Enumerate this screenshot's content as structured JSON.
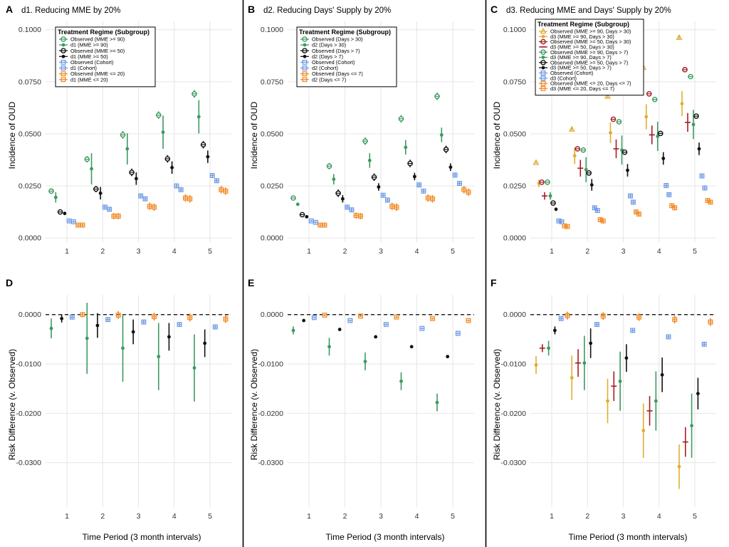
{
  "colors": {
    "green": "#3c9a5f",
    "black": "#111111",
    "blue": "#6f9be6",
    "orange": "#f28c28",
    "gold": "#e0ad32",
    "darkred": "#a51d24",
    "grid": "#e6e6e6"
  },
  "legend_title": "Treatment Regime (Subgroup)",
  "chart_data": [
    {
      "type": "scatter",
      "panel": "A",
      "title": "d1. Reducing MME by 20%",
      "ylabel": "Incidence of OUD",
      "xlabel": "",
      "ylim": [
        -0.002,
        0.104
      ],
      "yticks": [
        "0.0000",
        "0.0250",
        "0.0500",
        "0.0750",
        "0.1000"
      ],
      "categories": [
        "1",
        "2",
        "3",
        "4",
        "5"
      ],
      "legend": "top-left",
      "series": [
        {
          "name": "Observed (MME >= 90)",
          "color": "green",
          "marker": "o",
          "values": [
            0.0225,
            0.0378,
            0.0495,
            0.059,
            0.0692
          ],
          "err": [
            0.0012,
            0.0015,
            0.0018,
            0.0018,
            0.0018
          ]
        },
        {
          "name": "d1 (MME >= 90)",
          "color": "green",
          "marker": "dot",
          "values": [
            0.0195,
            0.0332,
            0.0428,
            0.0508,
            0.0582
          ],
          "err": [
            0.0025,
            0.0075,
            0.0075,
            0.008,
            0.008
          ]
        },
        {
          "name": "Observed (MME >= 50)",
          "color": "black",
          "marker": "o",
          "values": [
            0.0125,
            0.0235,
            0.0315,
            0.038,
            0.0448
          ],
          "err": [
            0.0008,
            0.0015,
            0.0018,
            0.0018,
            0.0018
          ]
        },
        {
          "name": "d1 (MME >= 50)",
          "color": "black",
          "marker": "dot",
          "values": [
            0.0118,
            0.0215,
            0.0285,
            0.0338,
            0.039
          ],
          "err": [
            0.0008,
            0.003,
            0.003,
            0.003,
            0.003
          ]
        },
        {
          "name": "Observed (Cohort)",
          "color": "blue",
          "marker": "sq",
          "values": [
            0.0082,
            0.0148,
            0.0202,
            0.025,
            0.03
          ],
          "err": [
            0.0006,
            0.0008,
            0.001,
            0.001,
            0.001
          ]
        },
        {
          "name": "d1 (Cohort)",
          "color": "blue",
          "marker": "sq",
          "values": [
            0.0078,
            0.0138,
            0.0188,
            0.0232,
            0.0275
          ],
          "err": [
            0.0005,
            0.0008,
            0.001,
            0.001,
            0.001
          ]
        },
        {
          "name": "Observed (MME <= 20)",
          "color": "orange",
          "marker": "sq",
          "values": [
            0.0062,
            0.0105,
            0.0152,
            0.0192,
            0.0232
          ],
          "err": [
            0.0008,
            0.0015,
            0.0018,
            0.0018,
            0.0018
          ]
        },
        {
          "name": "d1 (MME <= 20)",
          "color": "orange",
          "marker": "sq",
          "values": [
            0.0062,
            0.0105,
            0.0148,
            0.0188,
            0.0225
          ],
          "err": [
            0.0008,
            0.0015,
            0.0018,
            0.0018,
            0.0018
          ]
        }
      ]
    },
    {
      "type": "scatter",
      "panel": "B",
      "title": "d2. Reducing Days' Supply by 20%",
      "ylabel": "Incidence of OUD",
      "xlabel": "",
      "ylim": [
        -0.002,
        0.104
      ],
      "yticks": [
        "0.0000",
        "0.0250",
        "0.0500",
        "0.0750",
        "0.1000"
      ],
      "categories": [
        "1",
        "2",
        "3",
        "4",
        "5"
      ],
      "legend": "top-left",
      "series": [
        {
          "name": "Observed (Days > 30)",
          "color": "green",
          "marker": "o",
          "values": [
            0.0192,
            0.0345,
            0.0465,
            0.0572,
            0.068
          ],
          "err": [
            0.0012,
            0.0015,
            0.0018,
            0.0018,
            0.0018
          ]
        },
        {
          "name": "d2 (Days > 30)",
          "color": "green",
          "marker": "dot",
          "values": [
            0.0162,
            0.0282,
            0.0372,
            0.0435,
            0.0495
          ],
          "err": [
            0.0008,
            0.0025,
            0.0035,
            0.0035,
            0.0035
          ]
        },
        {
          "name": "Observed (Days > 7)",
          "color": "black",
          "marker": "o",
          "values": [
            0.0112,
            0.0215,
            0.0292,
            0.0358,
            0.0425
          ],
          "err": [
            0.0008,
            0.0018,
            0.0018,
            0.0018,
            0.0018
          ]
        },
        {
          "name": "d2 (Days > 7)",
          "color": "black",
          "marker": "dot",
          "values": [
            0.0102,
            0.0188,
            0.0245,
            0.0295,
            0.034
          ],
          "err": [
            0.0008,
            0.0018,
            0.0018,
            0.0018,
            0.0018
          ]
        },
        {
          "name": "Observed (Cohort)",
          "color": "blue",
          "marker": "sq",
          "values": [
            0.0082,
            0.0148,
            0.0205,
            0.0255,
            0.0302
          ],
          "err": [
            0.0005,
            0.0008,
            0.001,
            0.001,
            0.001
          ]
        },
        {
          "name": "d2 (Cohort)",
          "color": "blue",
          "marker": "sq",
          "values": [
            0.0075,
            0.0135,
            0.0182,
            0.0225,
            0.0262
          ],
          "err": [
            0.0005,
            0.0008,
            0.001,
            0.001,
            0.001
          ]
        },
        {
          "name": "Observed (Days <= 7)",
          "color": "orange",
          "marker": "sq",
          "values": [
            0.0062,
            0.0108,
            0.0152,
            0.0192,
            0.0232
          ],
          "err": [
            0.0008,
            0.0015,
            0.0018,
            0.0018,
            0.0018
          ]
        },
        {
          "name": "d2 (Days <= 7)",
          "color": "orange",
          "marker": "sq",
          "values": [
            0.0062,
            0.0105,
            0.0148,
            0.0188,
            0.022
          ],
          "err": [
            0.0008,
            0.0015,
            0.0018,
            0.0018,
            0.0018
          ]
        }
      ]
    },
    {
      "type": "scatter",
      "panel": "C",
      "title": "d3. Reducing MME and Days' Supply by 20%",
      "ylabel": "Incidence of OUD",
      "xlabel": "",
      "ylim": [
        -0.002,
        0.104
      ],
      "yticks": [
        "0.0000",
        "0.0250",
        "0.0500",
        "0.0750",
        "0.1000"
      ],
      "categories": [
        "1",
        "2",
        "3",
        "4",
        "5"
      ],
      "legend": "top-left",
      "series": [
        {
          "name": "Observed (MME >= 90, Days > 30)",
          "color": "gold",
          "marker": "tri",
          "values": [
            0.0362,
            0.0522,
            0.068,
            0.0818,
            0.0962
          ],
          "err": [
            0.0005,
            0.0008,
            0.001,
            0.001,
            0.001
          ]
        },
        {
          "name": "d3 (MME >= 90, Days > 30)",
          "color": "gold",
          "marker": "dot",
          "values": [
            0.0262,
            0.0395,
            0.0505,
            0.0582,
            0.0645
          ],
          "err": [
            0.0018,
            0.004,
            0.005,
            0.006,
            0.006
          ]
        },
        {
          "name": "Observed (MME >= 50, Days > 30)",
          "color": "darkred",
          "marker": "o",
          "values": [
            0.0268,
            0.0428,
            0.057,
            0.0692,
            0.0808
          ],
          "err": [
            0.0008,
            0.0012,
            0.0012,
            0.0012,
            0.0012
          ]
        },
        {
          "name": "d3 (MME >= 50, Days > 30)",
          "color": "darkred",
          "marker": "plus",
          "values": [
            0.0202,
            0.0335,
            0.0428,
            0.0495,
            0.0555
          ],
          "err": [
            0.0018,
            0.004,
            0.0045,
            0.0045,
            0.0045
          ]
        },
        {
          "name": "Observed (MME >= 90, Days > 7)",
          "color": "green",
          "marker": "o",
          "values": [
            0.0268,
            0.0422,
            0.0558,
            0.0665,
            0.0775
          ],
          "err": [
            0.0008,
            0.001,
            0.001,
            0.001,
            0.0012
          ]
        },
        {
          "name": "d3 (MME >= 90, Days > 7)",
          "color": "green",
          "marker": "dot",
          "values": [
            0.0202,
            0.0328,
            0.0422,
            0.0488,
            0.0545
          ],
          "err": [
            0.0018,
            0.006,
            0.007,
            0.007,
            0.007
          ]
        },
        {
          "name": "Observed (MME >= 50, Days > 7)",
          "color": "black",
          "marker": "o",
          "values": [
            0.0168,
            0.0312,
            0.0412,
            0.0502,
            0.0585
          ],
          "err": [
            0.0008,
            0.0012,
            0.0012,
            0.0012,
            0.0012
          ]
        },
        {
          "name": "d3 (MME >= 50, Days > 7)",
          "color": "black",
          "marker": "dot",
          "values": [
            0.0138,
            0.0255,
            0.0325,
            0.0382,
            0.0428
          ],
          "err": [
            0.0008,
            0.0028,
            0.003,
            0.003,
            0.003
          ]
        },
        {
          "name": "Observed (Cohort)",
          "color": "blue",
          "marker": "sq",
          "values": [
            0.0082,
            0.0145,
            0.0202,
            0.0252,
            0.0298
          ],
          "err": [
            0.0005,
            0.0008,
            0.001,
            0.001,
            0.001
          ]
        },
        {
          "name": "d3 (Cohort)",
          "color": "blue",
          "marker": "sq",
          "values": [
            0.0078,
            0.0132,
            0.0172,
            0.0208,
            0.024
          ],
          "err": [
            0.0005,
            0.0008,
            0.001,
            0.001,
            0.001
          ]
        },
        {
          "name": "Observed (MME <= 20, Days <= 7)",
          "color": "orange",
          "marker": "sq",
          "values": [
            0.0058,
            0.0088,
            0.0125,
            0.0155,
            0.018
          ],
          "err": [
            0.0006,
            0.0012,
            0.0012,
            0.0012,
            0.0012
          ]
        },
        {
          "name": "d3 (MME <= 20, Days <= 7)",
          "color": "orange",
          "marker": "sq",
          "values": [
            0.0055,
            0.0082,
            0.0115,
            0.0145,
            0.0172
          ],
          "err": [
            0.0006,
            0.0012,
            0.0012,
            0.0012,
            0.0012
          ]
        }
      ]
    },
    {
      "type": "scatter",
      "panel": "D",
      "title": "",
      "ylabel": "Risk Difference (v. Observed)",
      "xlabel": "Time Period (3 month intervals)",
      "ylim": [
        -0.039,
        0.004
      ],
      "yticks": [
        "-0.0300",
        "-0.0200",
        "-0.0100",
        "0.0000"
      ],
      "refline": 0,
      "categories": [
        "1",
        "2",
        "3",
        "4",
        "5"
      ],
      "series": [
        {
          "color": "green",
          "marker": "dot",
          "values": [
            -0.0028,
            -0.0048,
            -0.0068,
            -0.0085,
            -0.0108
          ],
          "err": [
            0.002,
            0.0072,
            0.0068,
            0.0068,
            0.0068
          ]
        },
        {
          "color": "black",
          "marker": "dot",
          "values": [
            -0.0008,
            -0.0022,
            -0.0035,
            -0.0045,
            -0.0058
          ],
          "err": [
            0.0008,
            0.0025,
            0.0025,
            0.0028,
            0.0028
          ]
        },
        {
          "color": "blue",
          "marker": "sq",
          "values": [
            -0.0005,
            -0.001,
            -0.0015,
            -0.002,
            -0.0025
          ],
          "err": [
            0.0003,
            0.0003,
            0.0003,
            0.0003,
            0.0003
          ]
        },
        {
          "color": "orange",
          "marker": "sq",
          "values": [
            0.0,
            -0.0001,
            -0.0004,
            -0.0006,
            -0.0009
          ],
          "err": [
            0.0005,
            0.0008,
            0.0008,
            0.0008,
            0.0008
          ]
        }
      ]
    },
    {
      "type": "scatter",
      "panel": "E",
      "title": "",
      "ylabel": "Risk Difference (v. Observed)",
      "xlabel": "Time Period (3 month intervals)",
      "ylim": [
        -0.039,
        0.004
      ],
      "yticks": [
        "-0.0300",
        "-0.0200",
        "-0.0100",
        "0.0000"
      ],
      "refline": 0,
      "categories": [
        "1",
        "2",
        "3",
        "4",
        "5"
      ],
      "series": [
        {
          "color": "green",
          "marker": "dot",
          "values": [
            -0.0032,
            -0.0065,
            -0.0095,
            -0.0135,
            -0.0178
          ],
          "err": [
            0.0008,
            0.0018,
            0.0018,
            0.0018,
            0.0018
          ]
        },
        {
          "color": "black",
          "marker": "dot",
          "values": [
            -0.0012,
            -0.003,
            -0.0045,
            -0.0065,
            -0.0085
          ],
          "err": [
            0.0003,
            0.0003,
            0.0003,
            0.0003,
            0.0003
          ]
        },
        {
          "color": "blue",
          "marker": "sq",
          "values": [
            -0.0006,
            -0.0012,
            -0.002,
            -0.0028,
            -0.0038
          ],
          "err": [
            0.0002,
            0.0002,
            0.0002,
            0.0002,
            0.0002
          ]
        },
        {
          "color": "orange",
          "marker": "sq",
          "values": [
            -0.0001,
            -0.0003,
            -0.0005,
            -0.0008,
            -0.0012
          ],
          "err": [
            0.0002,
            0.0002,
            0.0002,
            0.0002,
            0.0002
          ]
        }
      ]
    },
    {
      "type": "scatter",
      "panel": "F",
      "title": "",
      "ylabel": "Risk Difference (v. Observed)",
      "xlabel": "Time Period (3 month intervals)",
      "ylim": [
        -0.039,
        0.004
      ],
      "yticks": [
        "-0.0300",
        "-0.0200",
        "-0.0100",
        "0.0000"
      ],
      "refline": 0,
      "categories": [
        "1",
        "2",
        "3",
        "4",
        "5"
      ],
      "series": [
        {
          "color": "gold",
          "marker": "dot",
          "values": [
            -0.0102,
            -0.0128,
            -0.0175,
            -0.0235,
            -0.0308
          ],
          "err": [
            0.0018,
            0.0045,
            0.0045,
            0.0055,
            0.0045
          ]
        },
        {
          "color": "darkred",
          "marker": "plus",
          "values": [
            -0.0068,
            -0.0098,
            -0.0145,
            -0.0195,
            -0.0258
          ],
          "err": [
            0.0008,
            0.0028,
            0.003,
            0.003,
            0.003
          ]
        },
        {
          "color": "green",
          "marker": "dot",
          "values": [
            -0.0068,
            -0.0098,
            -0.0135,
            -0.0175,
            -0.0225
          ],
          "err": [
            0.0015,
            0.0055,
            0.006,
            0.006,
            0.0065
          ]
        },
        {
          "color": "black",
          "marker": "dot",
          "values": [
            -0.0032,
            -0.0058,
            -0.0088,
            -0.0122,
            -0.016
          ],
          "err": [
            0.0008,
            0.003,
            0.0028,
            0.0035,
            0.0032
          ]
        },
        {
          "color": "blue",
          "marker": "sq",
          "values": [
            -0.0008,
            -0.002,
            -0.0032,
            -0.0045,
            -0.006
          ],
          "err": [
            0.0003,
            0.0003,
            0.0003,
            0.0003,
            0.0003
          ]
        },
        {
          "color": "orange",
          "marker": "sq",
          "values": [
            -0.0002,
            -0.0003,
            -0.0005,
            -0.001,
            -0.0015
          ],
          "err": [
            0.0008,
            0.0008,
            0.0008,
            0.0008,
            0.0008
          ]
        }
      ]
    }
  ]
}
